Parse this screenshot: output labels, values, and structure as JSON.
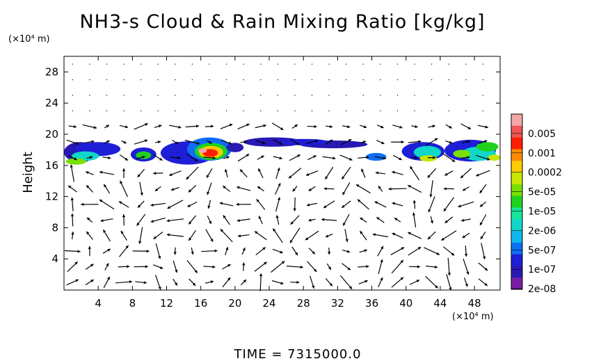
{
  "chart_data": {
    "type": "heatmap",
    "title": "NH3-s Cloud & Rain Mixing Ratio [kg/kg]",
    "ylabel": "Height",
    "xunit": "(×10⁴ m)",
    "yunit": "(×10⁴ m)",
    "xlim": [
      0,
      51
    ],
    "ylim": [
      0,
      30
    ],
    "xticks": [
      "4",
      "8",
      "12",
      "16",
      "20",
      "24",
      "28",
      "32",
      "36",
      "40",
      "44",
      "48"
    ],
    "yticks": [
      "4",
      "8",
      "12",
      "16",
      "20",
      "24",
      "28"
    ],
    "colorbar": {
      "labels": [
        "0.005",
        "0.001",
        "0.0002",
        "5e-05",
        "1e-05",
        "2e-06",
        "5e-07",
        "1e-07",
        "2e-08"
      ],
      "colors": [
        "#f4a7a7",
        "#f25555",
        "#ff1f00",
        "#ff8c00",
        "#ffcc00",
        "#c8e600",
        "#7ae000",
        "#1ed21e",
        "#14e69b",
        "#11d7c8",
        "#10b9eb",
        "#0d6ef5",
        "#1e1ed7",
        "#2819b4",
        "#781ea5"
      ]
    },
    "cloud_layer": {
      "base_height": 16,
      "top_height": 19.5,
      "peak_value": "0.005",
      "peak_x": 17
    },
    "wind_vectors": true,
    "time_label": "TIME = 7315000.0"
  }
}
